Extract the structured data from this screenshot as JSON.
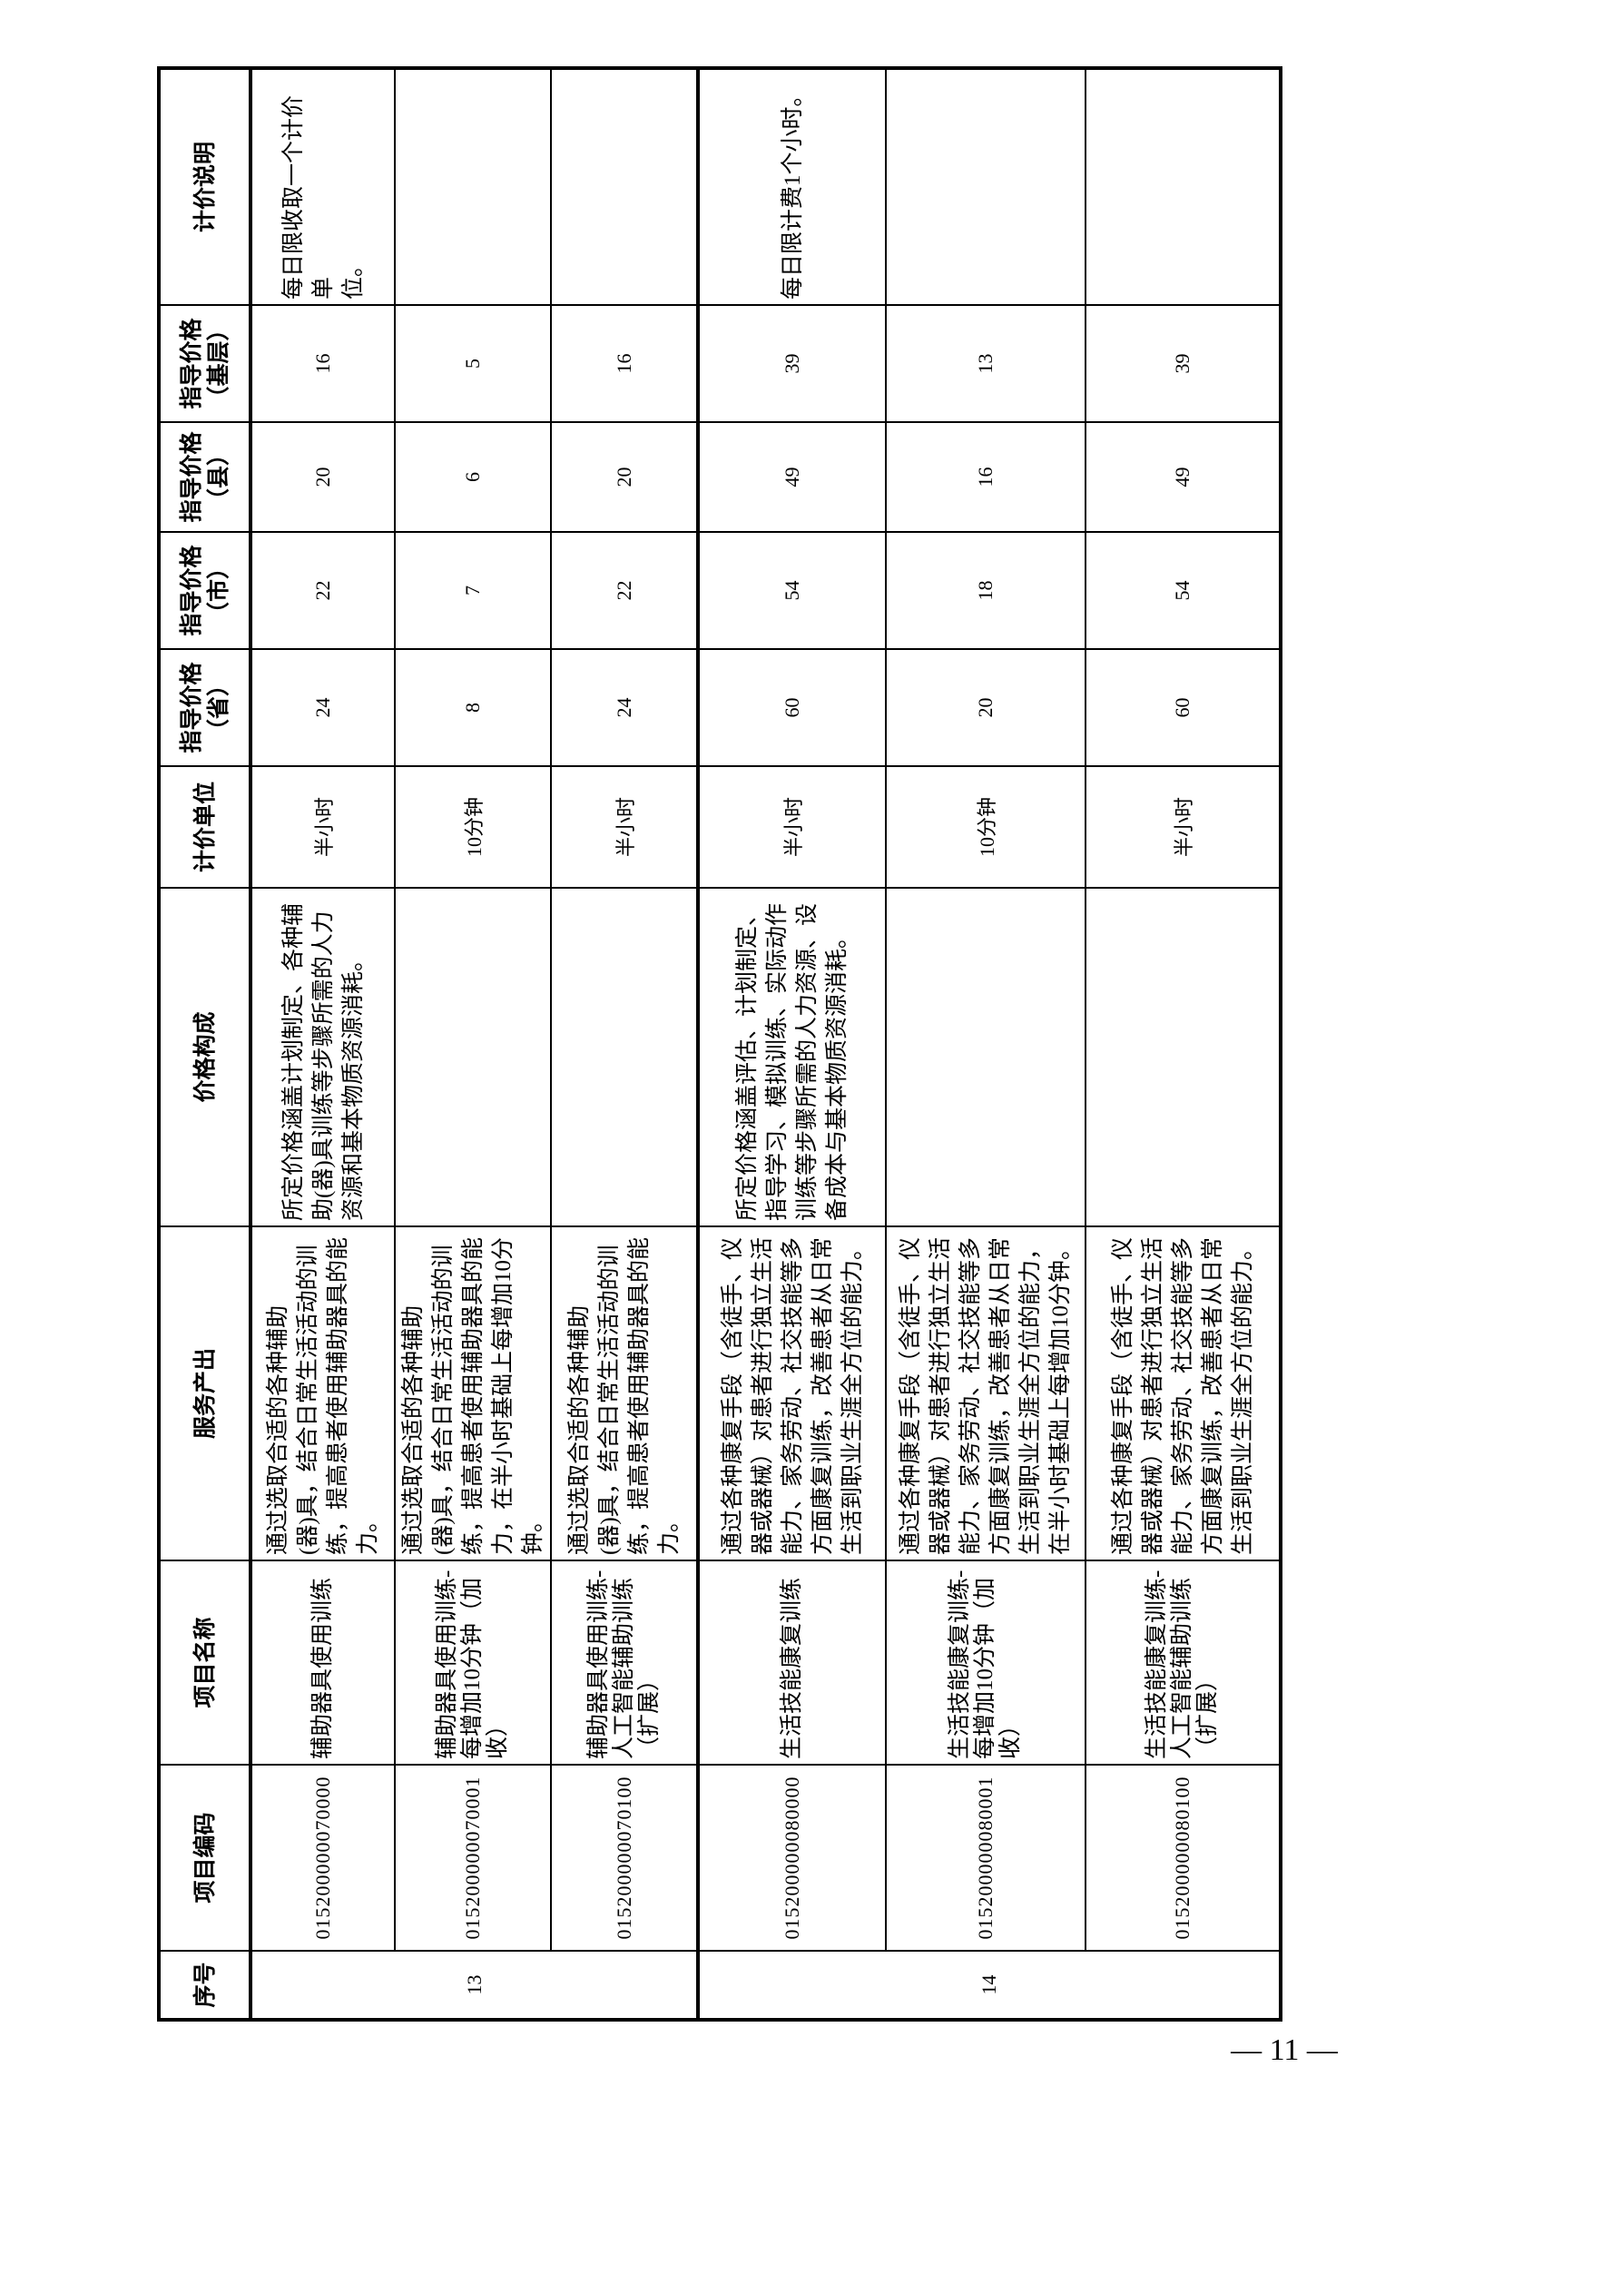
{
  "table": {
    "headers": {
      "seq": "序号",
      "code": "项目编码",
      "name": "项目名称",
      "output": "服务产出",
      "composition": "价格构成",
      "unit": "计价单位",
      "price_province": {
        "line1": "指导价格",
        "line2": "（省）"
      },
      "price_city": {
        "line1": "指导价格",
        "line2": "（市）"
      },
      "price_county": {
        "line1": "指导价格",
        "line2": "（县）"
      },
      "price_grassroots": {
        "line1": "指导价格",
        "line2": "（基层）"
      },
      "note": "计价说明"
    },
    "rows": [
      {
        "seq": "13",
        "code": "015200000070000",
        "name": [
          "辅助器具使用训练"
        ],
        "output": [
          "通过选取合适的各种辅助",
          "(器)具，结合日常生活活动的训",
          "练，提高患者使用辅助器具的能",
          "力。"
        ],
        "composition": [
          "所定价格涵盖计划制定、各种辅",
          "助(器)具训练等步骤所需的人力",
          "资源和基本物质资源消耗。"
        ],
        "unit": "半小时",
        "price_province": "24",
        "price_city": "22",
        "price_county": "20",
        "price_grassroots": "16",
        "note": [
          "每日限收取一个计价单",
          "位。"
        ]
      },
      {
        "code": "015200000070001",
        "name": [
          "辅助器具使用训练-",
          "每增加10分钟（加",
          "收）"
        ],
        "output": [
          "通过选取合适的各种辅助",
          "(器)具，结合日常生活活动的训",
          "练，提高患者使用辅助器具的能",
          "力，在半小时基础上每增加10分",
          "钟。"
        ],
        "composition": [],
        "unit": "10分钟",
        "price_province": "8",
        "price_city": "7",
        "price_county": "6",
        "price_grassroots": "5",
        "note": []
      },
      {
        "code": "015200000070100",
        "name": [
          "辅助器具使用训练-",
          "人工智能辅助训练",
          "（扩展）"
        ],
        "output": [
          "通过选取合适的各种辅助",
          "(器)具，结合日常生活活动的训",
          "练，提高患者使用辅助器具的能",
          "力。"
        ],
        "composition": [],
        "unit": "半小时",
        "price_province": "24",
        "price_city": "22",
        "price_county": "20",
        "price_grassroots": "16",
        "note": []
      },
      {
        "seq": "14",
        "code": "015200000080000",
        "name": [
          "生活技能康复训练"
        ],
        "output": [
          "通过各种康复手段（含徒手、仪",
          "器或器械）对患者进行独立生活",
          "能力、家务劳动、社交技能等多",
          "方面康复训练，改善患者从日常",
          "生活到职业生涯全方位的能力。"
        ],
        "composition": [
          "所定价格涵盖评估、计划制定、",
          "指导学习、模拟训练、实际动作",
          "训练等步骤所需的人力资源、设",
          "备成本与基本物质资源消耗。"
        ],
        "unit": "半小时",
        "price_province": "60",
        "price_city": "54",
        "price_county": "49",
        "price_grassroots": "39",
        "note": [
          "每日限计费1个小时。"
        ]
      },
      {
        "code": "015200000080001",
        "name": [
          "生活技能康复训练-",
          "每增加10分钟（加",
          "收）"
        ],
        "output": [
          "通过各种康复手段（含徒手、仪",
          "器或器械）对患者进行独立生活",
          "能力、家务劳动、社交技能等多",
          "方面康复训练，改善患者从日常",
          "生活到职业生涯全方位的能力，",
          "在半小时基础上每增加10分钟。"
        ],
        "composition": [],
        "unit": "10分钟",
        "price_province": "20",
        "price_city": "18",
        "price_county": "16",
        "price_grassroots": "13",
        "note": []
      },
      {
        "code": "015200000080100",
        "name": [
          "生活技能康复训练-",
          "人工智能辅助训练",
          "（扩展）"
        ],
        "output": [
          "通过各种康复手段（含徒手、仪",
          "器或器械）对患者进行独立生活",
          "能力、家务劳动、社交技能等多",
          "方面康复训练，改善患者从日常",
          "生活到职业生涯全方位的能力。"
        ],
        "composition": [],
        "unit": "半小时",
        "price_province": "60",
        "price_city": "54",
        "price_county": "49",
        "price_grassroots": "39",
        "note": []
      }
    ]
  },
  "page_number": "— 11 —"
}
